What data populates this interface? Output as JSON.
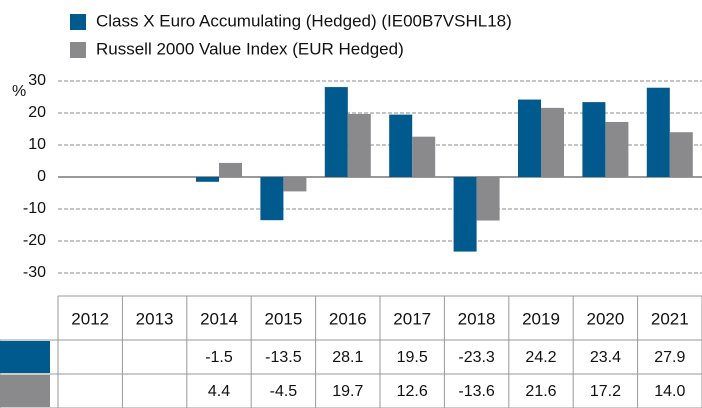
{
  "chart_data": {
    "type": "bar",
    "y_label": "%",
    "categories": [
      "2012",
      "2013",
      "2014",
      "2015",
      "2016",
      "2017",
      "2018",
      "2019",
      "2020",
      "2021"
    ],
    "series": [
      {
        "name": "Class X Euro Accumulating (Hedged) (IE00B7VSHL18)",
        "color": "#005a8e",
        "values": [
          null,
          null,
          -1.5,
          -13.5,
          28.1,
          19.5,
          -23.3,
          24.2,
          23.4,
          27.9
        ],
        "value_labels": [
          null,
          null,
          "-1.5",
          "-13.5",
          "28.1",
          "19.5",
          "-23.3",
          "24.2",
          "23.4",
          "27.9"
        ]
      },
      {
        "name": "Russell 2000 Value Index (EUR Hedged)",
        "color": "#8a8a8d",
        "values": [
          null,
          null,
          4.4,
          -4.5,
          19.7,
          12.6,
          -13.6,
          21.6,
          17.2,
          14.0
        ],
        "value_labels": [
          null,
          null,
          "4.4",
          "-4.5",
          "19.7",
          "12.6",
          "-13.6",
          "21.6",
          "17.2",
          "14.0"
        ]
      }
    ],
    "ylim": [
      -30,
      30
    ],
    "yticks": [
      30,
      20,
      10,
      0,
      -10,
      -20,
      -30
    ],
    "grid": true
  }
}
